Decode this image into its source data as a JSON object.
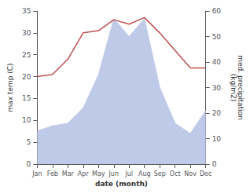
{
  "chart_data": {
    "type": "line",
    "categories": [
      "Jan",
      "Feb",
      "Mar",
      "Apr",
      "May",
      "Jun",
      "Jul",
      "Aug",
      "Sep",
      "Oct",
      "Nov",
      "Dec"
    ],
    "series": [
      {
        "type": "area",
        "color": "#bfc9e8",
        "axis": "y2",
        "values": [
          13,
          15,
          16,
          22,
          35,
          57,
          50,
          57,
          30,
          16,
          12,
          21
        ]
      },
      {
        "type": "line",
        "color": "#c0504d",
        "values": [
          20,
          20.5,
          24,
          30,
          30.5,
          33,
          32,
          33.5,
          30,
          26,
          22,
          22
        ]
      }
    ],
    "xlabel": "date (month)",
    "ylabel": "max temp (C)",
    "y2label": "med. precipitation\n(kg/m2)",
    "ylim": [
      0,
      35
    ],
    "yticks": [
      0,
      5,
      10,
      15,
      20,
      25,
      30,
      35
    ],
    "y2lim": [
      0,
      60
    ],
    "y2ticks": [
      0,
      10,
      20,
      30,
      40,
      50,
      60
    ],
    "grid": false
  }
}
